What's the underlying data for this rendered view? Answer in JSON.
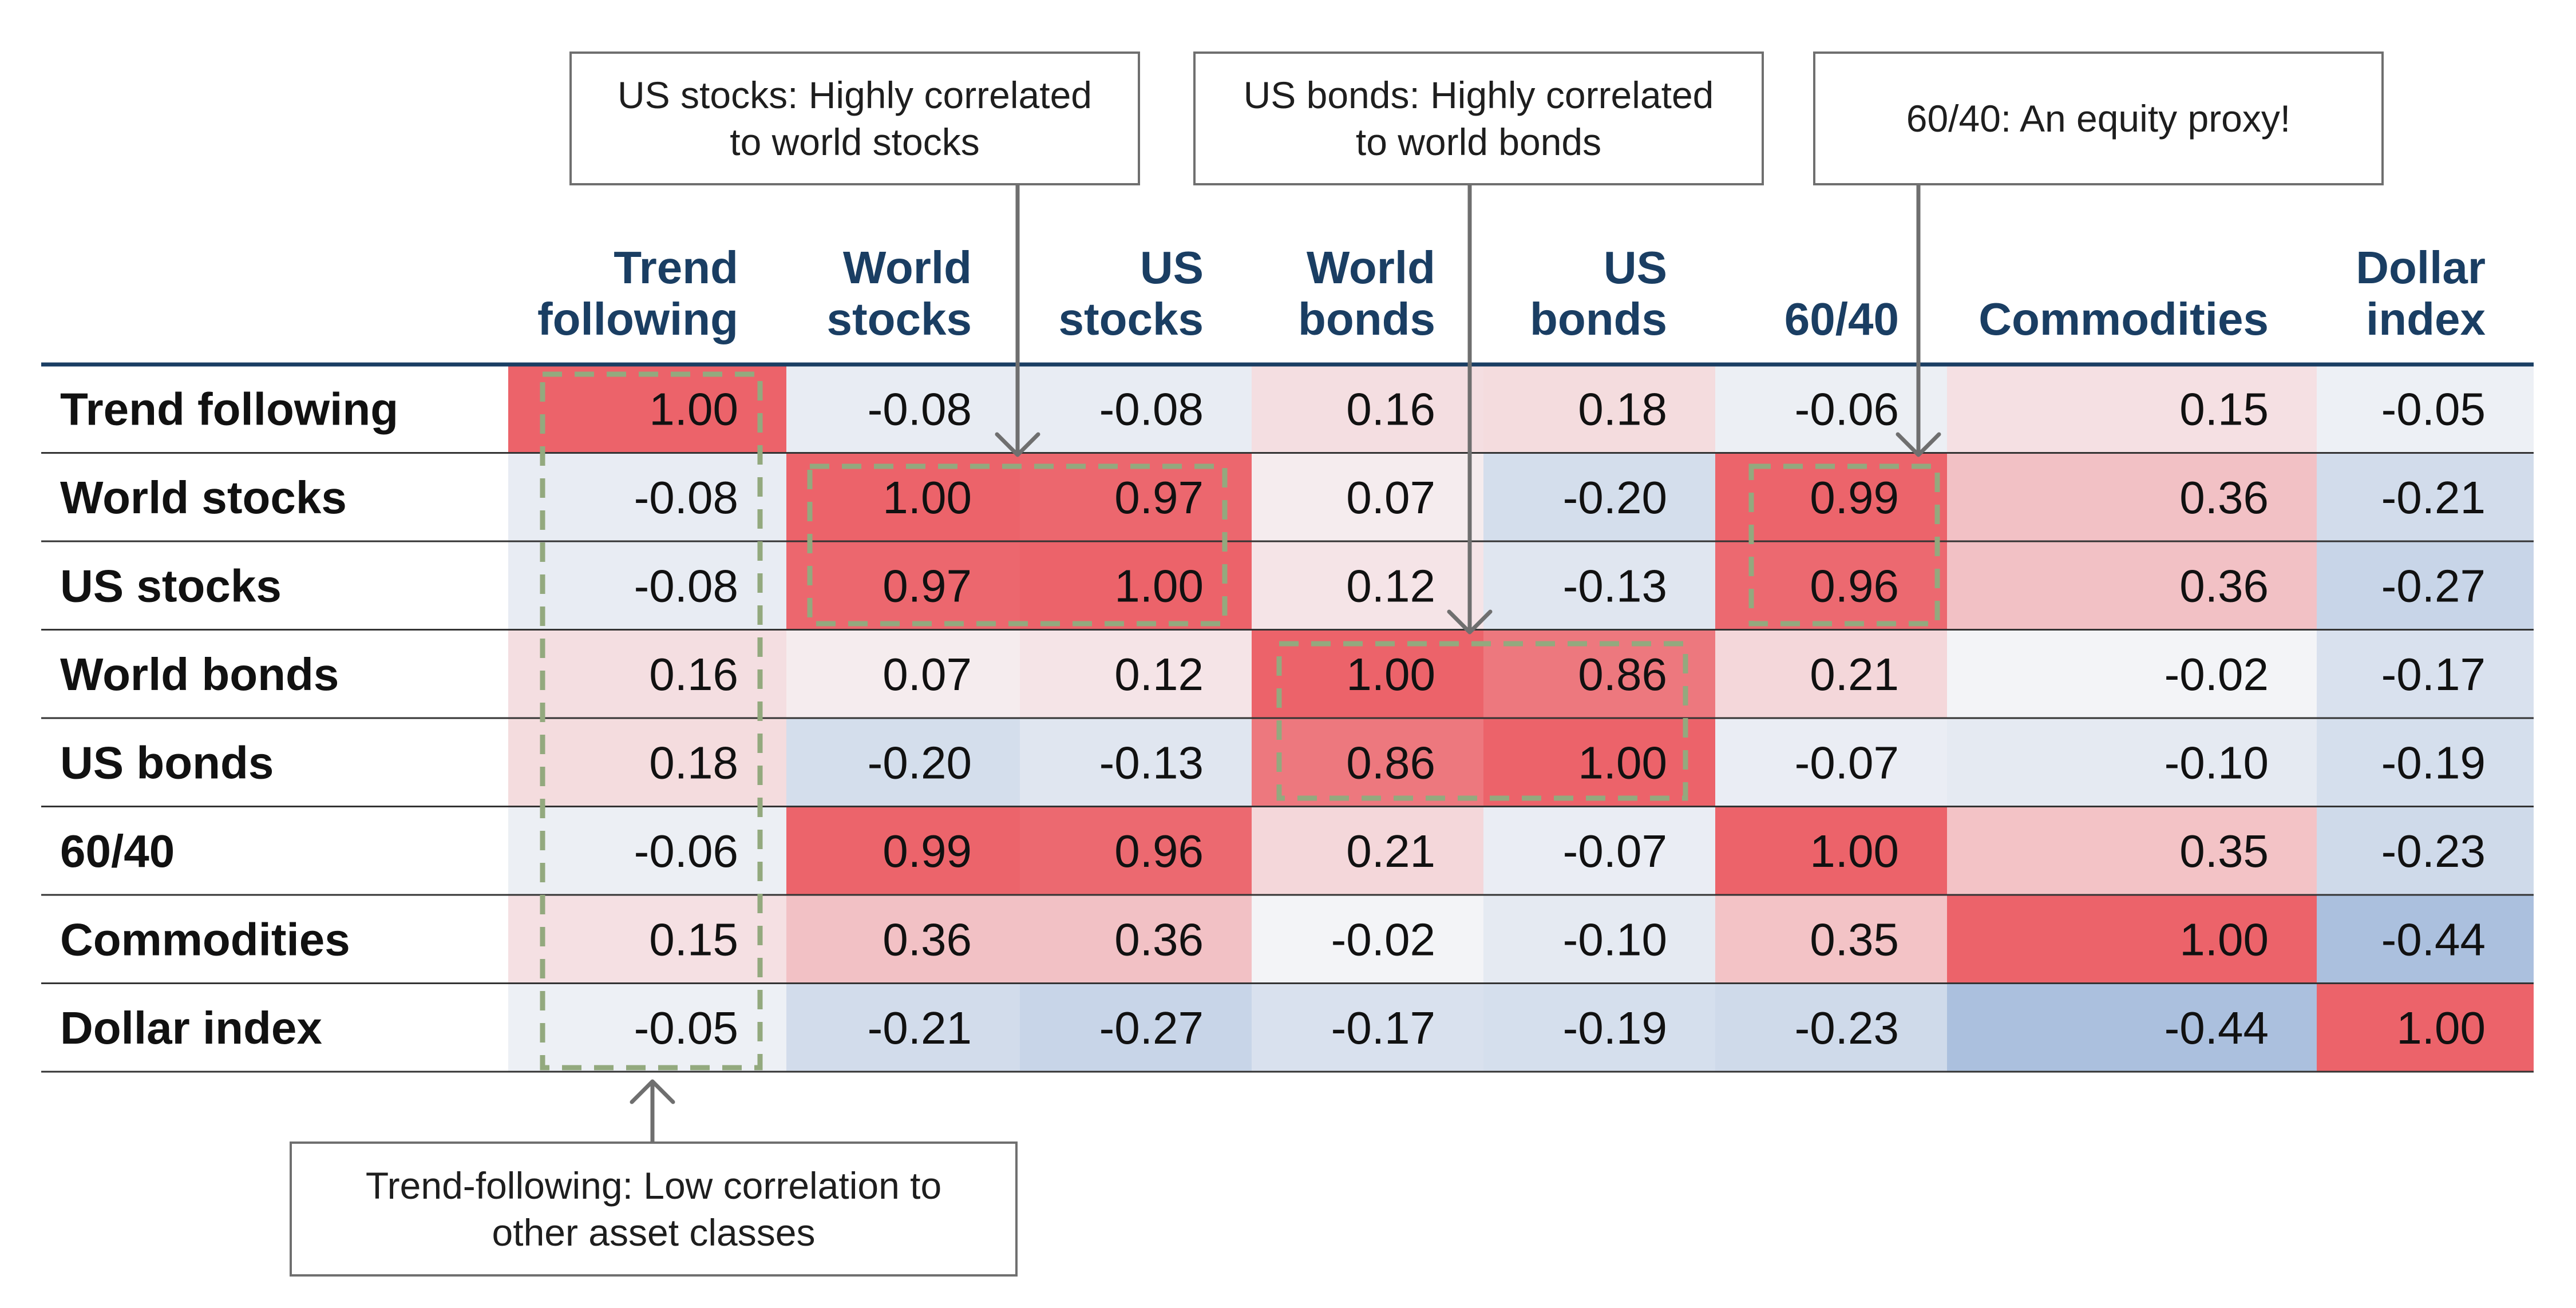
{
  "chart_data": {
    "type": "heatmap",
    "columns": [
      "Trend following",
      "World stocks",
      "US stocks",
      "World bonds",
      "US bonds",
      "60/40",
      "Commodities",
      "Dollar index"
    ],
    "column_header_lines": [
      [
        "Trend",
        "following"
      ],
      [
        "World",
        "stocks"
      ],
      [
        "US",
        "stocks"
      ],
      [
        "World",
        "bonds"
      ],
      [
        "US",
        "bonds"
      ],
      [
        "",
        "60/40"
      ],
      [
        "",
        "Commodities"
      ],
      [
        "Dollar",
        "index"
      ]
    ],
    "rows": [
      "Trend following",
      "World stocks",
      "US stocks",
      "World bonds",
      "US bonds",
      "60/40",
      "Commodities",
      "Dollar index"
    ],
    "values": [
      [
        1.0,
        -0.08,
        -0.08,
        0.16,
        0.18,
        -0.06,
        0.15,
        -0.05
      ],
      [
        -0.08,
        1.0,
        0.97,
        0.07,
        -0.2,
        0.99,
        0.36,
        -0.21
      ],
      [
        -0.08,
        0.97,
        1.0,
        0.12,
        -0.13,
        0.96,
        0.36,
        -0.27
      ],
      [
        0.16,
        0.07,
        0.12,
        1.0,
        0.86,
        0.21,
        -0.02,
        -0.17
      ],
      [
        0.18,
        -0.2,
        -0.13,
        0.86,
        1.0,
        -0.07,
        -0.1,
        -0.19
      ],
      [
        -0.06,
        0.99,
        0.96,
        0.21,
        -0.07,
        1.0,
        0.35,
        -0.23
      ],
      [
        0.15,
        0.36,
        0.36,
        -0.02,
        -0.1,
        0.35,
        1.0,
        -0.44
      ],
      [
        -0.05,
        -0.21,
        -0.27,
        -0.17,
        -0.19,
        -0.23,
        -0.44,
        1.0
      ]
    ],
    "value_format": "2-decimals",
    "color_scale": {
      "negative": "#a9bfdd",
      "neutral": "#f6f6f8",
      "positive": "#ec636a"
    },
    "colors": {
      "header_text": "#1a3e63",
      "highlight_dash": "#93a97e",
      "callout_border": "#6f6f6f"
    },
    "highlighted_blocks": [
      {
        "rows": [
          0,
          7
        ],
        "cols": [
          0,
          0
        ]
      },
      {
        "rows": [
          1,
          2
        ],
        "cols": [
          1,
          2
        ]
      },
      {
        "rows": [
          3,
          4
        ],
        "cols": [
          3,
          4
        ]
      },
      {
        "rows": [
          1,
          2
        ],
        "cols": [
          5,
          5
        ]
      }
    ],
    "callouts": [
      {
        "lines": [
          "US stocks: Highly correlated",
          "to world stocks"
        ],
        "points_to": {
          "row": 1,
          "col": 2
        }
      },
      {
        "lines": [
          "US bonds: Highly correlated",
          "to world bonds"
        ],
        "points_to": {
          "row": 3,
          "col": 4
        }
      },
      {
        "lines": [
          "60/40: An equity proxy!"
        ],
        "points_to": {
          "row": 1,
          "col": 5
        }
      },
      {
        "lines": [
          "Trend-following: Low correlation to",
          "other asset classes"
        ],
        "points_to": {
          "row": 7,
          "col": 0
        }
      }
    ]
  }
}
